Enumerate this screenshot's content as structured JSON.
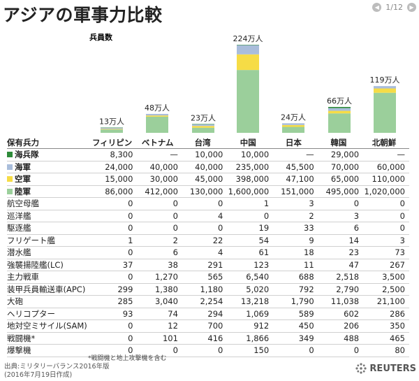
{
  "title": "アジアの軍事力比較",
  "pager": {
    "page": "1/12"
  },
  "chart_data": {
    "type": "bar",
    "stacked": true,
    "subtitle": "兵員数",
    "categories": [
      "フィリピン",
      "ベトナム",
      "台湾",
      "中国",
      "日本",
      "韓国",
      "北朝鮮"
    ],
    "totals_labels": [
      "13万人",
      "48万人",
      "23万人",
      "224万人",
      "24万人",
      "66万人",
      "119万人"
    ],
    "series": [
      {
        "name": "陸軍",
        "color": "#9bcf9b",
        "values": [
          86000,
          412000,
          130000,
          1600000,
          151000,
          495000,
          1020000
        ]
      },
      {
        "name": "空軍",
        "color": "#f6dc46",
        "values": [
          15000,
          30000,
          45000,
          398000,
          47100,
          65000,
          110000
        ]
      },
      {
        "name": "海軍",
        "color": "#a9bddb",
        "values": [
          24000,
          40000,
          40000,
          235000,
          45500,
          70000,
          60000
        ]
      },
      {
        "name": "海兵隊",
        "color": "#2e8b3a",
        "values": [
          8300,
          0,
          10000,
          10000,
          0,
          29000,
          0
        ]
      }
    ]
  },
  "table": {
    "header": "保有兵力",
    "rows": [
      {
        "label": "海兵隊",
        "swatch": "#2e8b3a",
        "values": [
          "8,300",
          "—",
          "10,000",
          "10,000",
          "—",
          "29,000",
          "—"
        ]
      },
      {
        "label": "海軍",
        "swatch": "#a9bddb",
        "values": [
          "24,000",
          "40,000",
          "40,000",
          "235,000",
          "45,500",
          "70,000",
          "60,000"
        ]
      },
      {
        "label": "空軍",
        "swatch": "#f6dc46",
        "values": [
          "15,000",
          "30,000",
          "45,000",
          "398,000",
          "47,100",
          "65,000",
          "110,000"
        ]
      },
      {
        "label": "陸軍",
        "swatch": "#9bcf9b",
        "values": [
          "86,000",
          "412,000",
          "130,000",
          "1,600,000",
          "151,000",
          "495,000",
          "1,020,000"
        ]
      },
      {
        "label": "航空母艦",
        "values": [
          "0",
          "0",
          "0",
          "1",
          "3",
          "0",
          "0"
        ]
      },
      {
        "label": "巡洋艦",
        "values": [
          "0",
          "0",
          "4",
          "0",
          "2",
          "3",
          "0"
        ]
      },
      {
        "label": "駆逐艦",
        "values": [
          "0",
          "0",
          "0",
          "19",
          "33",
          "6",
          "0"
        ]
      },
      {
        "label": "フリゲート艦",
        "values": [
          "1",
          "2",
          "22",
          "54",
          "9",
          "14",
          "3"
        ]
      },
      {
        "label": "潜水艦",
        "values": [
          "0",
          "6",
          "4",
          "61",
          "18",
          "23",
          "73"
        ]
      },
      {
        "label": "強襲揚陸艦(LC)",
        "values": [
          "37",
          "38",
          "291",
          "123",
          "11",
          "47",
          "267"
        ]
      },
      {
        "label": "主力戦車",
        "values": [
          "0",
          "1,270",
          "565",
          "6,540",
          "688",
          "2,518",
          "3,500"
        ]
      },
      {
        "label": "装甲兵員輸送車(APC)",
        "values": [
          "299",
          "1,380",
          "1,180",
          "5,020",
          "792",
          "2,790",
          "2,500"
        ]
      },
      {
        "label": "大砲",
        "values": [
          "285",
          "3,040",
          "2,254",
          "13,218",
          "1,790",
          "11,038",
          "21,100"
        ]
      },
      {
        "label": "ヘリコプター",
        "values": [
          "93",
          "74",
          "294",
          "1,069",
          "589",
          "602",
          "286"
        ]
      },
      {
        "label": "地対空ミサイル(SAM)",
        "values": [
          "0",
          "12",
          "700",
          "912",
          "450",
          "206",
          "350"
        ]
      },
      {
        "label": "戦闘機*",
        "values": [
          "0",
          "101",
          "416",
          "1,866",
          "349",
          "488",
          "465"
        ]
      },
      {
        "label": "爆撃機",
        "values": [
          "0",
          "0",
          "0",
          "150",
          "0",
          "0",
          "80"
        ]
      }
    ]
  },
  "footnote": "*戦闘機と地上攻撃機を含む",
  "source_line1": "出典:ミリタリーバランス2016年版",
  "source_line2": "(2016年7月19日作成)",
  "brand": "REUTERS"
}
